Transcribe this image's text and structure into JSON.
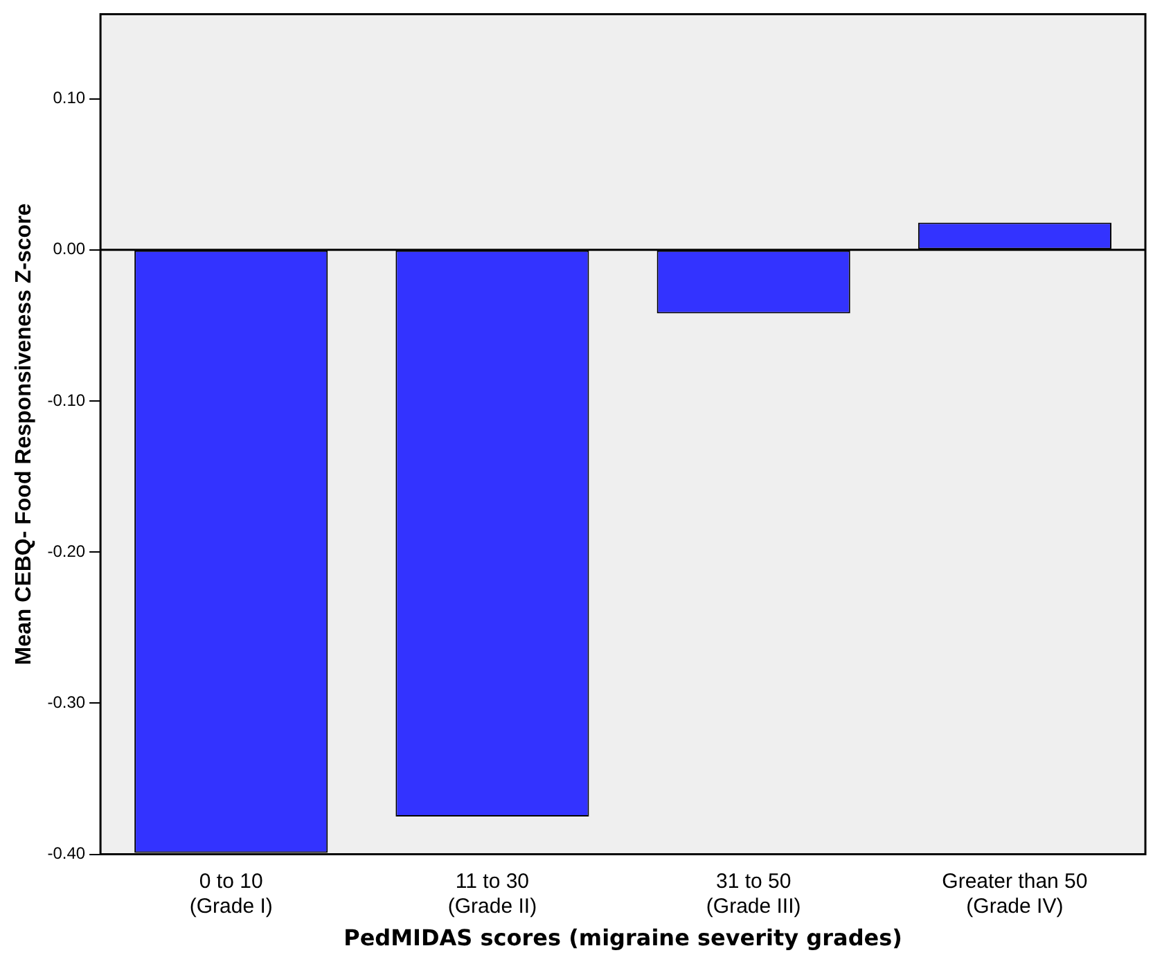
{
  "chart_data": {
    "type": "bar",
    "xlabel": "PedMIDAS scores (migraine severity grades)",
    "ylabel": "Mean CEBQ- Food Responsiveness Z-score",
    "categories": [
      "0 to 10\n(Grade I)",
      "11 to 30\n(Grade II)",
      "31 to 50\n(Grade III)",
      "Greater than 50\n(Grade IV)"
    ],
    "values": [
      -0.399,
      -0.375,
      -0.042,
      0.018
    ],
    "color": "#3333ff",
    "ylim": [
      -0.4,
      0.156
    ],
    "yticks": [
      {
        "value": -0.4,
        "label": "-0.40"
      },
      {
        "value": -0.3,
        "label": "-0.30"
      },
      {
        "value": -0.2,
        "label": "-0.20"
      },
      {
        "value": -0.1,
        "label": "-0.10"
      },
      {
        "value": 0,
        "label": "0.00"
      },
      {
        "value": 0.1,
        "label": "0.10"
      }
    ],
    "ref_lines": [
      {
        "axis": "y",
        "value": 0,
        "color": "#000000"
      }
    ],
    "grid": false,
    "legend": false
  }
}
